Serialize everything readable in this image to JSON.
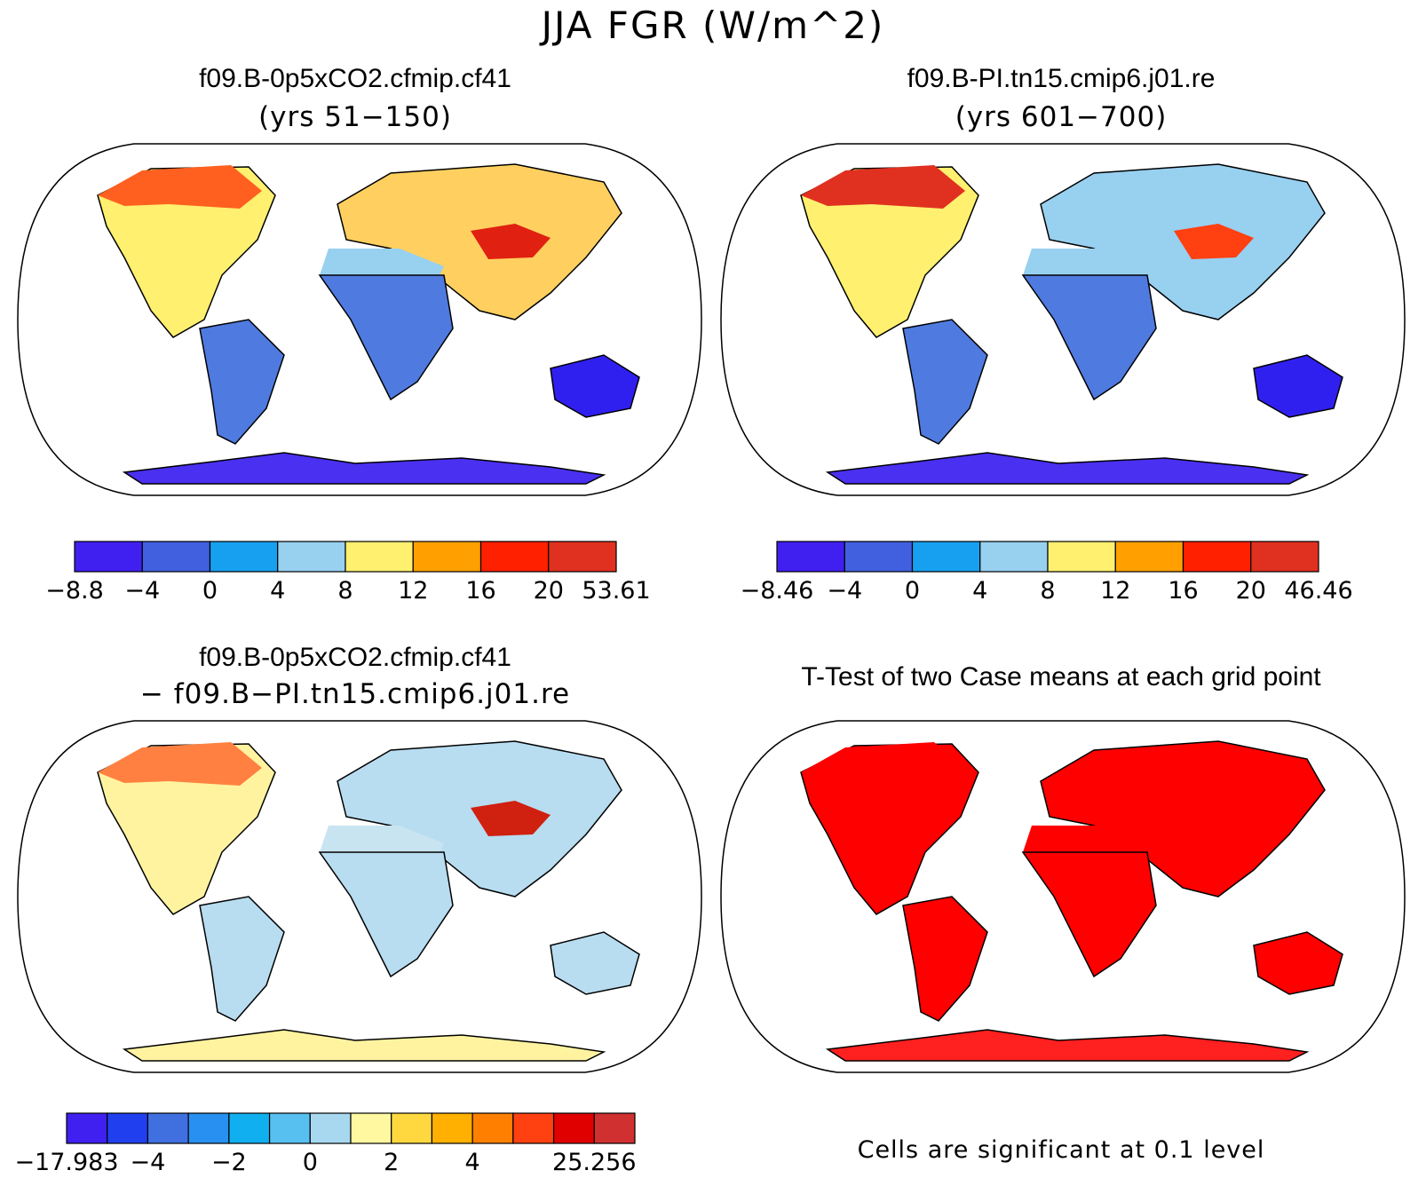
{
  "figure": {
    "title": "JJA FGR (W/m^2)"
  },
  "panels": [
    {
      "id": "p1",
      "title": "f09.B-0p5xCO2.cfmip.cf41",
      "subtitle": "(yrs 51−150)",
      "colorbar": {
        "colors": [
          "#4020f0",
          "#4060e0",
          "#18a0f0",
          "#98d0f0",
          "#fff070",
          "#ffa000",
          "#ff2000",
          "#e03020"
        ],
        "labels": [
          "−8.8",
          "−4",
          "0",
          "4",
          "8",
          "12",
          "16",
          "20",
          "53.61"
        ]
      }
    },
    {
      "id": "p2",
      "title": "f09.B-PI.tn15.cmip6.j01.re",
      "subtitle": "(yrs 601−700)",
      "colorbar": {
        "colors": [
          "#4020f0",
          "#4060e0",
          "#18a0f0",
          "#98d0f0",
          "#fff070",
          "#ffa000",
          "#ff2000",
          "#e03020"
        ],
        "labels": [
          "−8.46",
          "−4",
          "0",
          "4",
          "8",
          "12",
          "16",
          "20",
          "46.46"
        ]
      }
    },
    {
      "id": "p3",
      "title": "f09.B-0p5xCO2.cfmip.cf41",
      "subtitle": "− f09.B−PI.tn15.cmip6.j01.re",
      "colorbar": {
        "colors": [
          "#4020f0",
          "#2040f0",
          "#4070e0",
          "#2890f0",
          "#10b0f0",
          "#58c0f0",
          "#a8d8f0",
          "#fff8a0",
          "#ffd840",
          "#ffb000",
          "#ff8000",
          "#ff4010",
          "#e00000",
          "#d03030"
        ],
        "labels": [
          "−17.983",
          "",
          "−4",
          "",
          "−2",
          "",
          "0",
          "",
          "2",
          "",
          "4",
          "",
          "",
          "25.256"
        ]
      }
    },
    {
      "id": "p4",
      "title": "T-Test of two Case means at each grid point",
      "subtitle": "",
      "note": "Cells are significant at 0.1 level"
    }
  ],
  "map_fills": {
    "p1": {
      "north": "#ff6020",
      "europe_asia": "#ffd060",
      "tibet": "#e02010",
      "africa": "#4f7ae0",
      "sahara": "#98d0f0",
      "south_america": "#4f7ae0",
      "australia": "#3020f0",
      "antarctica": "#4a30f0",
      "north_america": "#fff070"
    },
    "p2": {
      "north": "#e03020",
      "europe_asia": "#98d0f0",
      "tibet": "#ff4010",
      "africa": "#4f7ae0",
      "sahara": "#98d0f0",
      "south_america": "#4f7ae0",
      "australia": "#3020f0",
      "antarctica": "#4a30f0",
      "north_america": "#fff070"
    },
    "p3": {
      "north": "#ff8040",
      "europe_asia": "#b8dcf0",
      "tibet": "#d02010",
      "africa": "#b8dcf0",
      "sahara": "#c8e4f0",
      "south_america": "#b8dcf0",
      "australia": "#b8dcf0",
      "antarctica": "#fff3a0",
      "north_america": "#fff3a0"
    },
    "p4": {
      "north": "#ff0000",
      "europe_asia": "#ff0000",
      "tibet": "#ff0000",
      "africa": "#ff0000",
      "sahara": "#ff0000",
      "south_america": "#ff0000",
      "australia": "#ff0000",
      "antarctica": "#ff2020",
      "north_america": "#ff0000"
    }
  }
}
